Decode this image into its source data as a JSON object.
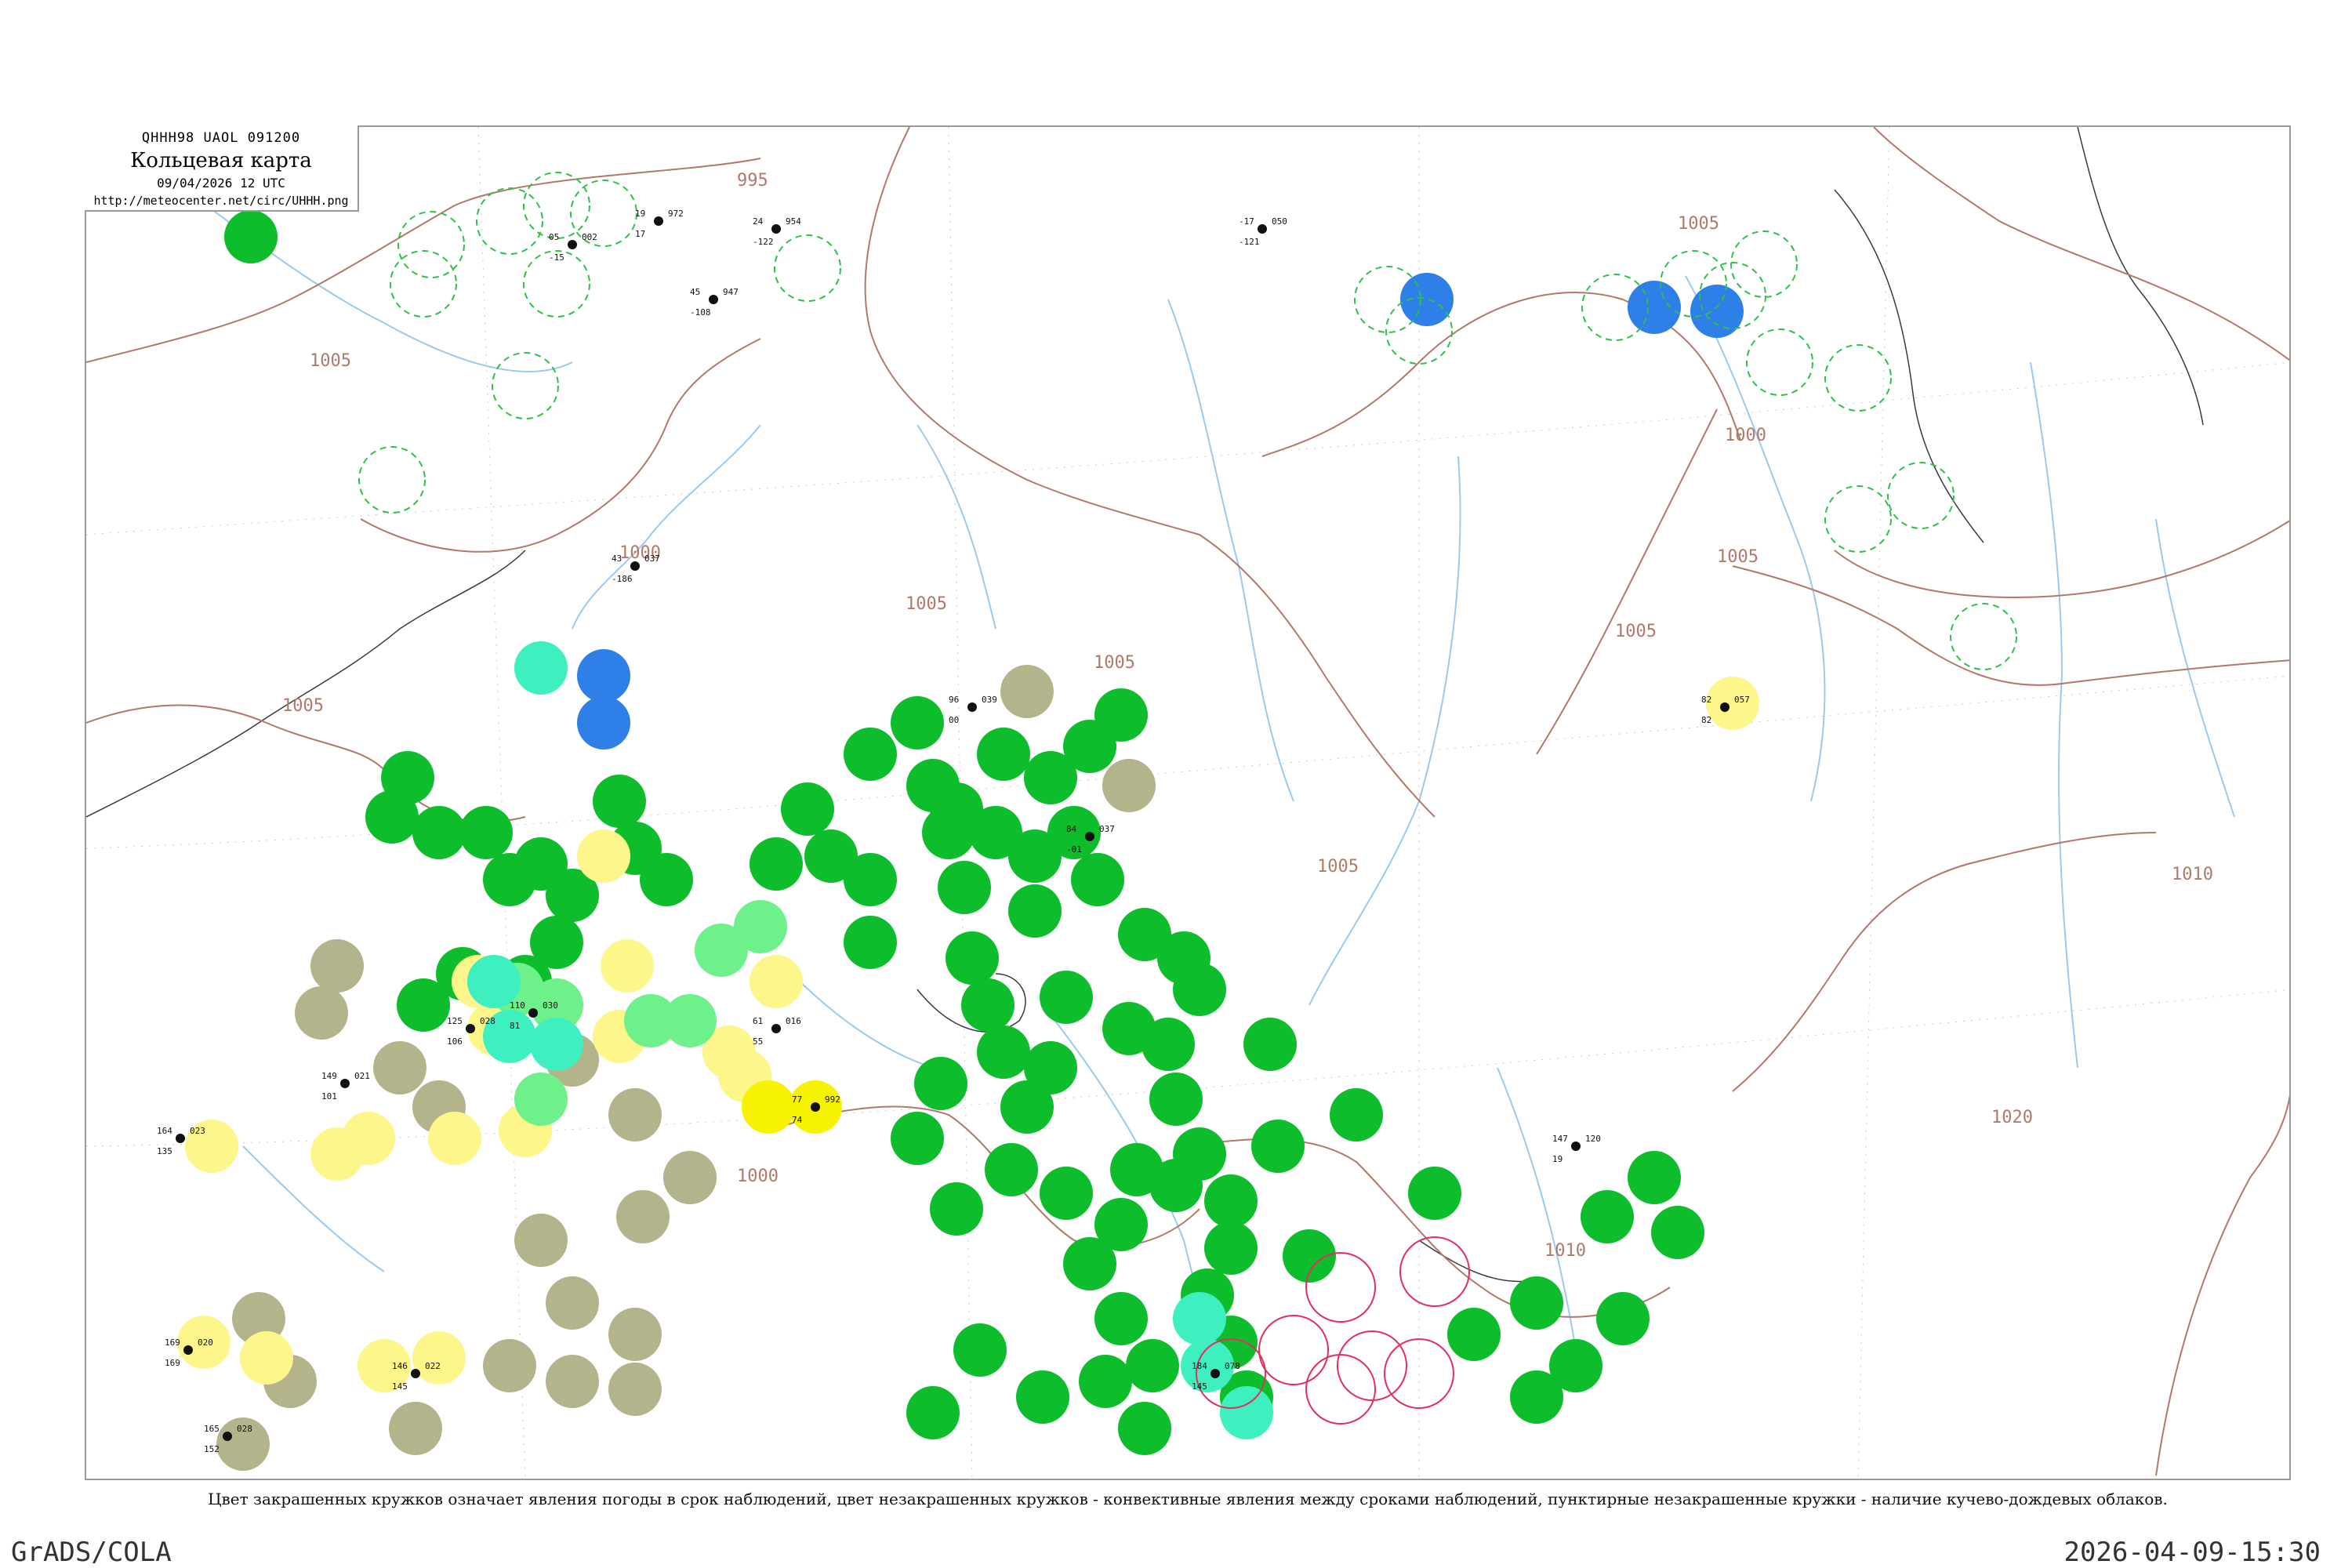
{
  "header": {
    "code": "QHHH98  UAOL  091200",
    "title": "Кольцевая карта",
    "datetime": "09/04/2026 12 UTC",
    "url": "http://meteocenter.net/circ/UHHH.png"
  },
  "caption": "Цвет закрашенных кружков означает явления погоды в срок наблюдений, цвет незакрашенных кружков - конвективные явления между сроками наблюдений, пунктирные незакрашенные кружки - наличие кучево-дождевых облаков.",
  "footer": {
    "left": "GrADS/COLA",
    "right": "2026-04-09-15:30"
  },
  "colors": {
    "isobar": "#b07a6a",
    "river": "#9cc9ee",
    "coast": "#3a3a3a",
    "green": "#0dbd2b",
    "khaki": "#b3b38c",
    "yellow": "#fdf68a",
    "bright_yellow": "#f7f200",
    "light_green": "#6ef08a",
    "cyan": "#3ef0c0",
    "blue": "#2f7fe8",
    "dashed_green": "#2ec04a",
    "red_ring": "#e03060"
  },
  "isobar_labels": [
    "995",
    "1000",
    "1000",
    "1000",
    "1005",
    "1005",
    "1005",
    "1005",
    "1005",
    "1005",
    "1005",
    "1010",
    "1010",
    "1020",
    "1005"
  ],
  "stations": [
    {
      "t": "05",
      "td": "-15",
      "p": "002"
    },
    {
      "t": "19",
      "td": "17",
      "p": "972"
    },
    {
      "t": "24",
      "td": "-122",
      "p": "954"
    },
    {
      "t": "-17",
      "td": "-121",
      "p": "050"
    },
    {
      "t": "45",
      "td": "-108",
      "p": "947"
    },
    {
      "t": "43",
      "td": "-186",
      "p": "037"
    },
    {
      "t": "82",
      "td": "82",
      "p": "057"
    },
    {
      "t": "96",
      "td": "00",
      "p": "039"
    },
    {
      "t": "84",
      "td": "-01",
      "p": "037"
    },
    {
      "t": "77",
      "td": "74",
      "p": "992"
    },
    {
      "t": "164",
      "td": "135",
      "p": "023"
    },
    {
      "t": "149",
      "td": "101",
      "p": "021"
    },
    {
      "t": "165",
      "td": "152",
      "p": "028"
    },
    {
      "t": "169",
      "td": "169",
      "p": "020"
    },
    {
      "t": "147",
      "td": "19",
      "p": "120"
    },
    {
      "t": "110",
      "td": "81",
      "p": "030"
    },
    {
      "t": "125",
      "td": "106",
      "p": "028"
    },
    {
      "t": "61",
      "td": "55",
      "p": "016"
    },
    {
      "t": "146",
      "td": "145",
      "p": "022"
    },
    {
      "t": "184",
      "td": "145",
      "p": "078"
    }
  ]
}
